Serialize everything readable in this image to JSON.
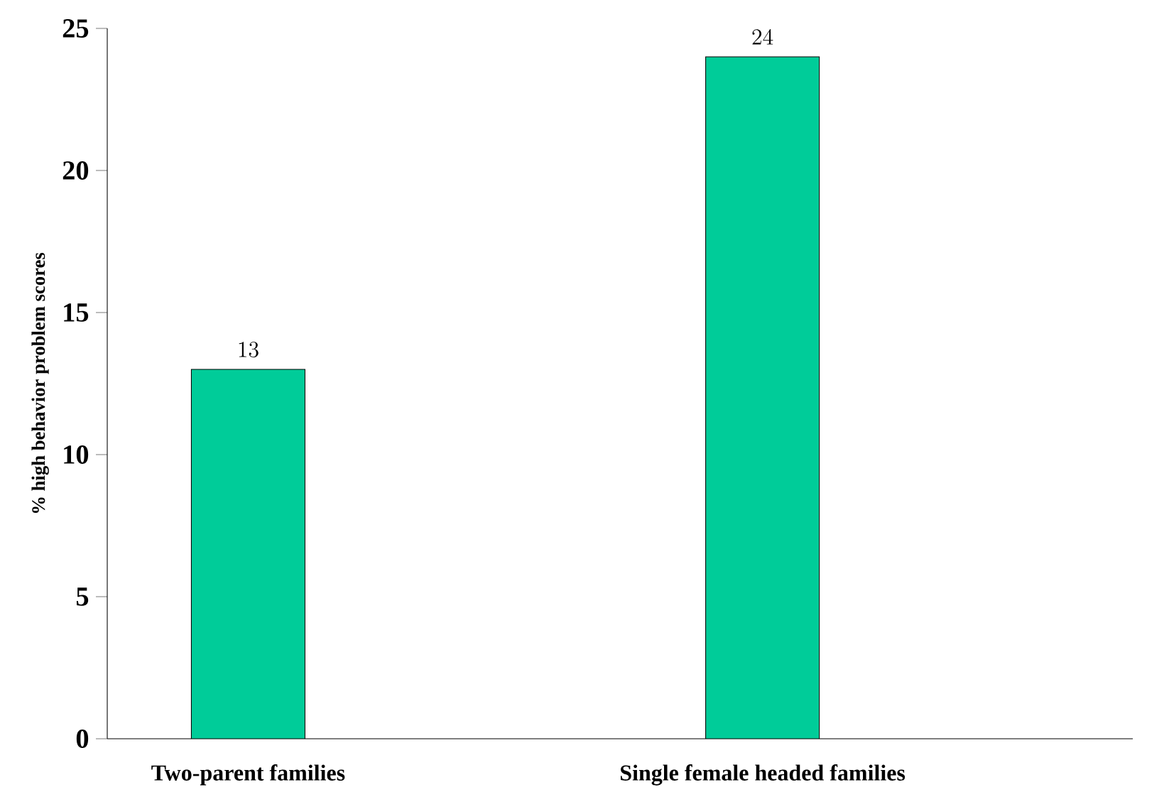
{
  "chart_data": {
    "type": "bar",
    "ylabel": "% high behavior problem scores",
    "categories": [
      "Two-parent families",
      "Single female headed  families"
    ],
    "values": [
      13,
      24
    ],
    "color": "#00cc99",
    "ylim": [
      0,
      25
    ],
    "yticks": [
      0,
      5,
      10,
      15,
      20,
      25
    ],
    "data_labels": true
  }
}
